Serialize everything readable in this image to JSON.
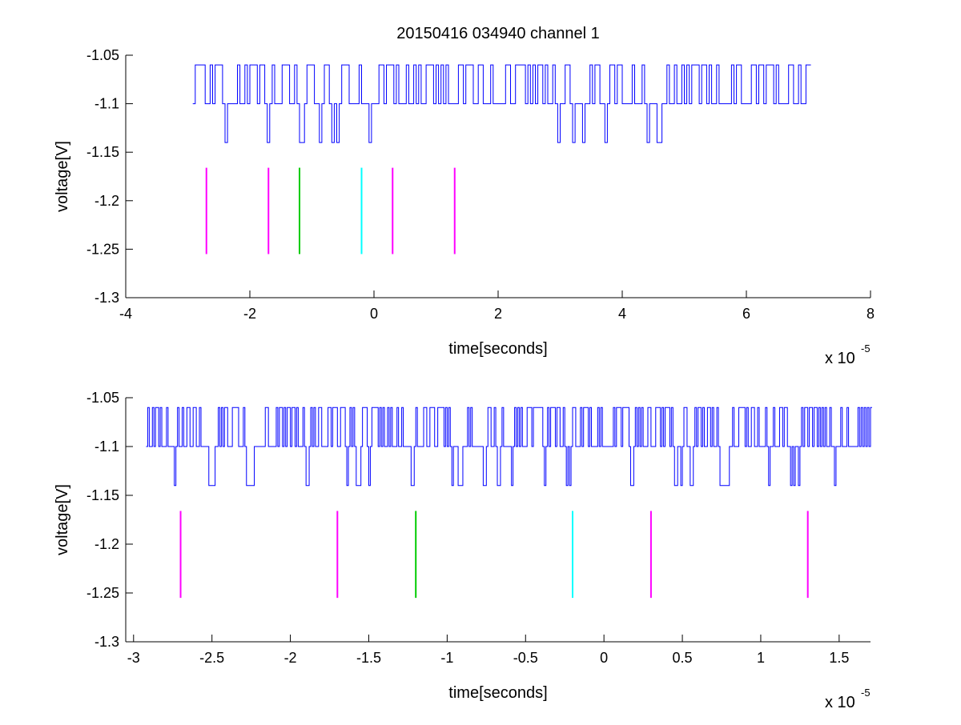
{
  "chart_data": [
    {
      "type": "line",
      "title": "20150416 034940 channel 1",
      "xlabel": "time[seconds]",
      "ylabel": "voltage[V]",
      "x_multiplier_label": "x 10",
      "x_multiplier_exp": "-5",
      "xlim": [
        -4,
        8
      ],
      "ylim": [
        -1.3,
        -1.05
      ],
      "xticks": [
        -4,
        -2,
        0,
        2,
        4,
        6,
        8
      ],
      "xtick_labels": [
        "-4",
        "-2",
        "0",
        "2",
        "4",
        "6",
        "8"
      ],
      "yticks": [
        -1.05,
        -1.1,
        -1.15,
        -1.2,
        -1.25,
        -1.3
      ],
      "ytick_labels": [
        "-1.05",
        "-1.1",
        "-1.15",
        "-1.2",
        "-1.25",
        "-1.3"
      ],
      "grid": false,
      "signal": {
        "color": "#0000ff",
        "x_range": [
          -2.92,
          7.02
        ],
        "levels": [
          -1.06,
          -1.1,
          -1.14
        ],
        "step": 0.04,
        "seed": 7
      },
      "markers": [
        {
          "x": -2.7,
          "y_range": [
            -1.166,
            -1.255
          ],
          "color": "#ff00ff"
        },
        {
          "x": -1.7,
          "y_range": [
            -1.166,
            -1.255
          ],
          "color": "#ff00ff"
        },
        {
          "x": -1.2,
          "y_range": [
            -1.166,
            -1.255
          ],
          "color": "#00cc00"
        },
        {
          "x": -0.2,
          "y_range": [
            -1.166,
            -1.255
          ],
          "color": "#00ffff"
        },
        {
          "x": 0.3,
          "y_range": [
            -1.166,
            -1.255
          ],
          "color": "#ff00ff"
        },
        {
          "x": 1.3,
          "y_range": [
            -1.166,
            -1.255
          ],
          "color": "#ff00ff"
        }
      ]
    },
    {
      "type": "line",
      "title": "",
      "xlabel": "time[seconds]",
      "ylabel": "voltage[V]",
      "x_multiplier_label": "x 10",
      "x_multiplier_exp": "-5",
      "xlim": [
        -3.05,
        1.7
      ],
      "ylim": [
        -1.3,
        -1.05
      ],
      "xticks": [
        -3,
        -2.5,
        -2,
        -1.5,
        -1,
        -0.5,
        0,
        0.5,
        1,
        1.5
      ],
      "xtick_labels": [
        "-3",
        "-2.5",
        "-2",
        "-1.5",
        "-1",
        "-0.5",
        "0",
        "0.5",
        "1",
        "1.5"
      ],
      "yticks": [
        -1.05,
        -1.1,
        -1.15,
        -1.2,
        -1.25,
        -1.3
      ],
      "ytick_labels": [
        "-1.05",
        "-1.1",
        "-1.15",
        "-1.2",
        "-1.25",
        "-1.3"
      ],
      "grid": false,
      "signal": {
        "color": "#0000ff",
        "x_range": [
          -2.92,
          1.7
        ],
        "levels": [
          -1.06,
          -1.1,
          -1.14
        ],
        "step": 0.01,
        "seed": 13
      },
      "markers": [
        {
          "x": -2.7,
          "y_range": [
            -1.166,
            -1.255
          ],
          "color": "#ff00ff"
        },
        {
          "x": -1.7,
          "y_range": [
            -1.166,
            -1.255
          ],
          "color": "#ff00ff"
        },
        {
          "x": -1.2,
          "y_range": [
            -1.166,
            -1.255
          ],
          "color": "#00cc00"
        },
        {
          "x": -0.2,
          "y_range": [
            -1.166,
            -1.255
          ],
          "color": "#00ffff"
        },
        {
          "x": 0.3,
          "y_range": [
            -1.166,
            -1.255
          ],
          "color": "#ff00ff"
        },
        {
          "x": 1.3,
          "y_range": [
            -1.166,
            -1.255
          ],
          "color": "#ff00ff"
        }
      ]
    }
  ]
}
